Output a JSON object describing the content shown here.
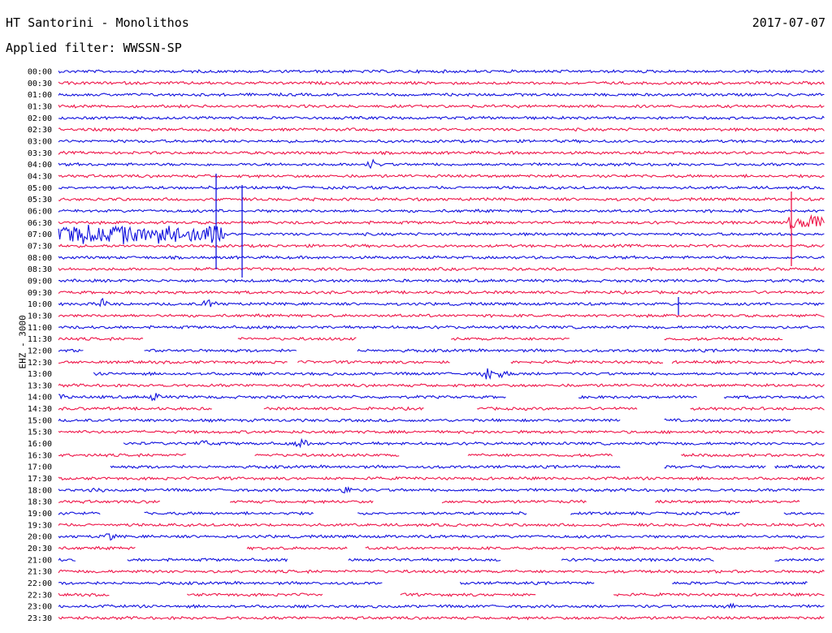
{
  "header": {
    "station": "HT Santorini - Monolithos",
    "date": "2017-07-07",
    "filter": "Applied filter: WWSSN-SP",
    "channel": "EHZ - 3000"
  },
  "colors": {
    "even_trace": "#1010dd",
    "odd_trace": "#ee1448"
  },
  "chart_data": {
    "type": "line",
    "title": "HT Santorini - Monolithos",
    "subtitle": "Applied filter: WWSSN-SP",
    "ylabel": "EHZ - 3000",
    "categories": [
      "00:00",
      "00:30",
      "01:00",
      "01:30",
      "02:00",
      "02:30",
      "03:00",
      "03:30",
      "04:00",
      "04:30",
      "05:00",
      "05:30",
      "06:00",
      "06:30",
      "07:00",
      "07:30",
      "08:00",
      "08:30",
      "09:00",
      "09:30",
      "10:00",
      "10:30",
      "11:00",
      "11:30",
      "12:00",
      "12:30",
      "13:00",
      "13:30",
      "14:00",
      "14:30",
      "15:00",
      "15:30",
      "16:00",
      "16:30",
      "17:00",
      "17:30",
      "18:00",
      "18:30",
      "19:00",
      "19:30",
      "20:00",
      "20:30",
      "21:00",
      "21:30",
      "22:00",
      "22:30",
      "23:00",
      "23:30"
    ],
    "series": [
      {
        "color": "#1010dd",
        "rows": "even"
      },
      {
        "color": "#ee1448",
        "rows": "odd"
      }
    ],
    "events": [
      {
        "row": 14,
        "start_min": 0,
        "end_min": 6.5,
        "amplitude": 0.9
      },
      {
        "row": 13,
        "start_min": 28.5,
        "end_min": 30,
        "amplitude": 0.8
      },
      {
        "row": 8,
        "time_min": 12.3,
        "amplitude": 0.45
      },
      {
        "row": 20,
        "time_min": 1.7,
        "amplitude": 0.45
      },
      {
        "row": 20,
        "time_min": 5.9,
        "amplitude": 0.45
      },
      {
        "row": 26,
        "time_min": 16.8,
        "amplitude": 0.55
      },
      {
        "row": 26,
        "time_min": 17.4,
        "amplitude": 0.55
      },
      {
        "row": 28,
        "time_min": 0.2,
        "amplitude": 0.45
      },
      {
        "row": 28,
        "time_min": 3.8,
        "amplitude": 0.4
      },
      {
        "row": 32,
        "time_min": 5.7,
        "amplitude": 0.4
      },
      {
        "row": 32,
        "time_min": 9.5,
        "amplitude": 0.45
      },
      {
        "row": 36,
        "time_min": 1.5,
        "amplitude": 0.4
      },
      {
        "row": 36,
        "time_min": 11.3,
        "amplitude": 0.4
      },
      {
        "row": 40,
        "time_min": 2.0,
        "amplitude": 0.35
      },
      {
        "row": 46,
        "time_min": 26.2,
        "amplitude": 0.35
      }
    ],
    "gaps": [
      {
        "row": 23,
        "start_min": 0,
        "end_min": 30,
        "density": 0.45
      },
      {
        "row": 24,
        "start_min": 0,
        "end_min": 15,
        "density": 0.3
      },
      {
        "row": 25,
        "start_min": 9,
        "end_min": 24,
        "density": 0.3
      },
      {
        "row": 26,
        "start_min": 0,
        "end_min": 2,
        "density": 0.6
      },
      {
        "row": 28,
        "start_min": 17.5,
        "end_min": 26,
        "density": 0.45
      },
      {
        "row": 29,
        "start_min": 0,
        "end_min": 30,
        "density": 0.25
      },
      {
        "row": 30,
        "start_min": 22,
        "end_min": 30,
        "density": 0.4
      },
      {
        "row": 32,
        "start_min": 0,
        "end_min": 2.5,
        "density": 0.6
      },
      {
        "row": 33,
        "start_min": 0,
        "end_min": 30,
        "density": 0.3
      },
      {
        "row": 34,
        "start_min": 0,
        "end_min": 2,
        "density": 1.0
      },
      {
        "row": 34,
        "start_min": 22,
        "end_min": 28,
        "density": 0.5
      },
      {
        "row": 37,
        "start_min": 0,
        "end_min": 30,
        "density": 0.3
      },
      {
        "row": 38,
        "start_min": 0,
        "end_min": 30,
        "density": 0.2
      },
      {
        "row": 41,
        "start_min": 0,
        "end_min": 12,
        "density": 0.5
      },
      {
        "row": 42,
        "start_min": 0,
        "end_min": 30,
        "density": 0.25
      },
      {
        "row": 44,
        "start_min": 9,
        "end_min": 30,
        "density": 0.35
      },
      {
        "row": 45,
        "start_min": 0,
        "end_min": 25,
        "density": 0.35
      }
    ]
  }
}
